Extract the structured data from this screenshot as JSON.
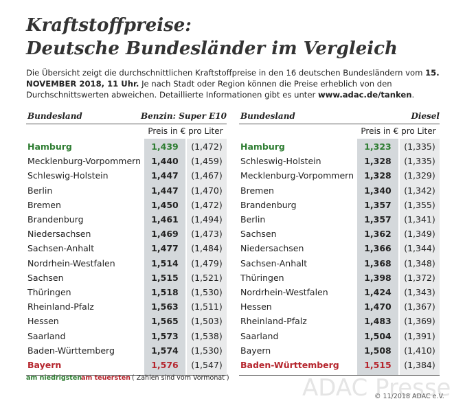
{
  "header": {
    "title_line1": "Kraftstoffpreise:",
    "title_line2": "Deutsche Bundesländer im Vergleich",
    "intro": [
      "Die Übersicht zeigt die durchschnittlichen Kraftstoffpreise in den 16 deutschen Bundesländern vom ",
      "15. NOVEMBER 2018, 11 Uhr.",
      " Je nach Stadt oder Region können die Preise erheblich von den Durchschnittswerten abweichen. Detaillierte Informationen gibt es unter ",
      "www.adac.de/tanken",
      "."
    ]
  },
  "tables": [
    {
      "region": "Bundesland",
      "fuel": "Benzin: Super E10",
      "unit": "Preis in € pro Liter",
      "rows": [
        [
          "Hamburg",
          "1,439",
          "(1,472)"
        ],
        [
          "Mecklenburg-Vorpommern",
          "1,440",
          "(1,459)"
        ],
        [
          "Schleswig-Holstein",
          "1,447",
          "(1,467)"
        ],
        [
          "Berlin",
          "1,447",
          "(1,470)"
        ],
        [
          "Bremen",
          "1,450",
          "(1,472)"
        ],
        [
          "Brandenburg",
          "1,461",
          "(1,494)"
        ],
        [
          "Niedersachsen",
          "1,469",
          "(1,473)"
        ],
        [
          "Sachsen-Anhalt",
          "1,477",
          "(1,484)"
        ],
        [
          "Nordrhein-Westfalen",
          "1,514",
          "(1,479)"
        ],
        [
          "Sachsen",
          "1,515",
          "(1,521)"
        ],
        [
          "Thüringen",
          "1,518",
          "(1,530)"
        ],
        [
          "Rheinland-Pfalz",
          "1,563",
          "(1,511)"
        ],
        [
          "Hessen",
          "1,565",
          "(1,503)"
        ],
        [
          "Saarland",
          "1,573",
          "(1,538)"
        ],
        [
          "Baden-Württemberg",
          "1,574",
          "(1,530)"
        ],
        [
          "Bayern",
          "1,576",
          "(1,547)"
        ]
      ]
    },
    {
      "region": "Bundesland",
      "fuel": "Diesel",
      "unit": "Preis in € pro Liter",
      "rows": [
        [
          "Hamburg",
          "1,323",
          "(1,335)"
        ],
        [
          "Schleswig-Holstein",
          "1,328",
          "(1,335)"
        ],
        [
          "Mecklenburg-Vorpommern",
          "1,328",
          "(1,329)"
        ],
        [
          "Bremen",
          "1,340",
          "(1,342)"
        ],
        [
          "Brandenburg",
          "1,357",
          "(1,355)"
        ],
        [
          "Berlin",
          "1,357",
          "(1,341)"
        ],
        [
          "Sachsen",
          "1,362",
          "(1,349)"
        ],
        [
          "Niedersachsen",
          "1,366",
          "(1,344)"
        ],
        [
          "Sachsen-Anhalt",
          "1,368",
          "(1,348)"
        ],
        [
          "Thüringen",
          "1,398",
          "(1,372)"
        ],
        [
          "Nordrhein-Westfalen",
          "1,424",
          "(1,343)"
        ],
        [
          "Hessen",
          "1,470",
          "(1,367)"
        ],
        [
          "Rheinland-Pfalz",
          "1,483",
          "(1,369)"
        ],
        [
          "Saarland",
          "1,504",
          "(1,391)"
        ],
        [
          "Bayern",
          "1,508",
          "(1,410)"
        ],
        [
          "Baden-Württemberg",
          "1,515",
          "(1,384)"
        ]
      ]
    }
  ],
  "footer": {
    "low": "am niedrigsten",
    "high": "am teuersten",
    "note": "( Zahlen sind vom Vormonat )",
    "watermark": "ADAC Presse",
    "copyright": "© 11/2018 ADAC e.V."
  }
}
